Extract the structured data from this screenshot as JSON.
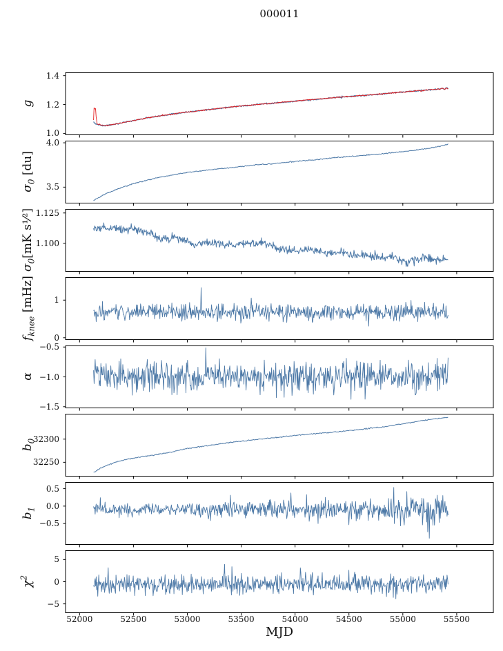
{
  "figure": {
    "title": "000011",
    "xlabel": "MJD",
    "background": "#ffffff",
    "axis_color": "#000000"
  },
  "colors": {
    "line_blue": "#4d79a7",
    "line_red": "#e31a1c"
  },
  "axis": {
    "xlim": [
      51870,
      55840
    ],
    "grid": false,
    "xticks": [
      {
        "v": 52000,
        "label": "52000"
      },
      {
        "v": 52500,
        "label": "52500"
      },
      {
        "v": 53000,
        "label": "53000"
      },
      {
        "v": 53500,
        "label": "53500"
      },
      {
        "v": 54000,
        "label": "54000"
      },
      {
        "v": 54500,
        "label": "54500"
      },
      {
        "v": 55000,
        "label": "55000"
      },
      {
        "v": 55500,
        "label": "55500"
      }
    ]
  },
  "chart_data": [
    {
      "id": "g",
      "type": "line",
      "ylabel": {
        "main": "g",
        "sub": "",
        "sup": "",
        "unit": ""
      },
      "ylim": [
        0.99,
        1.42
      ],
      "yticks": [
        {
          "v": 1.4,
          "label": "1.4"
        },
        {
          "v": 1.2,
          "label": "1.2"
        },
        {
          "v": 1.0,
          "label": "1.0"
        }
      ],
      "series": [
        {
          "name": "gain-blue",
          "color": "#4d79a7",
          "width": 1.3,
          "kind": "smooth",
          "n": 620,
          "noise": 0.0022,
          "seed": 7,
          "anchors": [
            [
              52130,
              1.075
            ],
            [
              52160,
              1.062
            ],
            [
              52230,
              1.052
            ],
            [
              52320,
              1.062
            ],
            [
              52450,
              1.082
            ],
            [
              52600,
              1.103
            ],
            [
              52750,
              1.122
            ],
            [
              52900,
              1.138
            ],
            [
              53050,
              1.152
            ],
            [
              53200,
              1.165
            ],
            [
              53350,
              1.178
            ],
            [
              53500,
              1.19
            ],
            [
              53650,
              1.2
            ],
            [
              53800,
              1.21
            ],
            [
              53950,
              1.22
            ],
            [
              54100,
              1.23
            ],
            [
              54250,
              1.24
            ],
            [
              54400,
              1.25
            ],
            [
              54550,
              1.258
            ],
            [
              54700,
              1.267
            ],
            [
              54850,
              1.277
            ],
            [
              55000,
              1.287
            ],
            [
              55150,
              1.296
            ],
            [
              55250,
              1.302
            ],
            [
              55330,
              1.306
            ],
            [
              55370,
              1.312
            ],
            [
              55390,
              1.305
            ],
            [
              55410,
              1.316
            ],
            [
              55420,
              1.31
            ]
          ]
        },
        {
          "name": "gain-red",
          "color": "#e31a1c",
          "width": 0.9,
          "kind": "smooth",
          "n": 700,
          "noise": 0.0022,
          "seed": 9,
          "anchors": [
            [
              52130,
              1.09
            ],
            [
              52136,
              1.205
            ],
            [
              52141,
              1.15
            ],
            [
              52147,
              1.195
            ],
            [
              52153,
              1.12
            ],
            [
              52162,
              1.068
            ],
            [
              52230,
              1.052
            ],
            [
              52320,
              1.062
            ],
            [
              52450,
              1.082
            ],
            [
              52600,
              1.103
            ],
            [
              52750,
              1.122
            ],
            [
              52900,
              1.138
            ],
            [
              53050,
              1.152
            ],
            [
              53200,
              1.165
            ],
            [
              53350,
              1.178
            ],
            [
              53500,
              1.19
            ],
            [
              53650,
              1.2
            ],
            [
              53800,
              1.21
            ],
            [
              53950,
              1.22
            ],
            [
              54100,
              1.23
            ],
            [
              54250,
              1.24
            ],
            [
              54400,
              1.25
            ],
            [
              54550,
              1.258
            ],
            [
              54700,
              1.267
            ],
            [
              54850,
              1.277
            ],
            [
              55000,
              1.287
            ],
            [
              55150,
              1.296
            ],
            [
              55250,
              1.302
            ],
            [
              55330,
              1.306
            ],
            [
              55370,
              1.312
            ],
            [
              55390,
              1.305
            ],
            [
              55410,
              1.316
            ],
            [
              55420,
              1.31
            ]
          ]
        }
      ]
    },
    {
      "id": "sigma0-du",
      "type": "line",
      "ylabel": {
        "main": "σ",
        "sub": "0",
        "sup": "",
        "unit": " [du]"
      },
      "ylim": [
        3.32,
        4.02
      ],
      "yticks": [
        {
          "v": 4.0,
          "label": "4.0"
        },
        {
          "v": 3.5,
          "label": "3.5"
        }
      ],
      "series": [
        {
          "name": "sigma0-du",
          "color": "#4d79a7",
          "width": 1.0,
          "kind": "smooth",
          "n": 520,
          "noise": 0.003,
          "seed": 21,
          "anchors": [
            [
              52130,
              3.35
            ],
            [
              52250,
              3.43
            ],
            [
              52400,
              3.5
            ],
            [
              52550,
              3.555
            ],
            [
              52700,
              3.6
            ],
            [
              52850,
              3.635
            ],
            [
              53000,
              3.665
            ],
            [
              53200,
              3.695
            ],
            [
              53400,
              3.72
            ],
            [
              53600,
              3.745
            ],
            [
              53800,
              3.765
            ],
            [
              54000,
              3.79
            ],
            [
              54200,
              3.81
            ],
            [
              54400,
              3.835
            ],
            [
              54600,
              3.855
            ],
            [
              54800,
              3.875
            ],
            [
              55000,
              3.9
            ],
            [
              55200,
              3.93
            ],
            [
              55350,
              3.96
            ],
            [
              55420,
              3.985
            ]
          ]
        }
      ]
    },
    {
      "id": "sigma0-mK",
      "type": "line",
      "ylabel": {
        "main": "σ",
        "sub": "0",
        "sup": "",
        "unit": "[mK s¹⁄²]"
      },
      "ylim": [
        1.077,
        1.128
      ],
      "yticks": [
        {
          "v": 1.125,
          "label": "1.125"
        },
        {
          "v": 1.1,
          "label": "1.100"
        }
      ],
      "series": [
        {
          "name": "sigma0-mK",
          "color": "#4d79a7",
          "width": 1.0,
          "kind": "smooth",
          "n": 660,
          "noise": 0.0018,
          "seed": 33,
          "anchors": [
            [
              52130,
              1.1125
            ],
            [
              52250,
              1.113
            ],
            [
              52400,
              1.1115
            ],
            [
              52550,
              1.112
            ],
            [
              52650,
              1.108
            ],
            [
              52750,
              1.1035
            ],
            [
              52900,
              1.1045
            ],
            [
              53000,
              1.1005
            ],
            [
              53100,
              1.0995
            ],
            [
              53250,
              1.101
            ],
            [
              53400,
              1.0985
            ],
            [
              53550,
              1.1
            ],
            [
              53700,
              1.0995
            ],
            [
              53850,
              1.096
            ],
            [
              54000,
              1.0935
            ],
            [
              54150,
              1.0955
            ],
            [
              54300,
              1.0915
            ],
            [
              54450,
              1.0925
            ],
            [
              54600,
              1.09
            ],
            [
              54750,
              1.0895
            ],
            [
              54900,
              1.088
            ],
            [
              55050,
              1.0845
            ],
            [
              55200,
              1.0885
            ],
            [
              55350,
              1.086
            ],
            [
              55420,
              1.0865
            ]
          ]
        }
      ]
    },
    {
      "id": "fknee",
      "type": "line",
      "ylabel": {
        "main": "f",
        "sub": "knee",
        "sup": "",
        "unit": " [mHz]"
      },
      "ylim": [
        -0.05,
        1.6
      ],
      "yticks": [
        {
          "v": 1,
          "label": "1"
        },
        {
          "v": 0,
          "label": "0"
        }
      ],
      "series": [
        {
          "name": "fknee",
          "color": "#4d79a7",
          "width": 0.9,
          "kind": "noise",
          "n": 680,
          "x0": 52130,
          "x1": 55420,
          "mean": 0.68,
          "amp": 0.115,
          "spike_p": 0.02,
          "spike_mult": 2.2,
          "seed": 44
        }
      ]
    },
    {
      "id": "alpha",
      "type": "line",
      "ylabel": {
        "main": "α",
        "sub": "",
        "sup": "",
        "unit": ""
      },
      "ylim": [
        -1.52,
        -0.48
      ],
      "yticks": [
        {
          "v": -0.5,
          "label": "−0.5"
        },
        {
          "v": -1.0,
          "label": "−1.0"
        },
        {
          "v": -1.5,
          "label": "−1.5"
        }
      ],
      "series": [
        {
          "name": "alpha",
          "color": "#4d79a7",
          "width": 0.9,
          "kind": "noise",
          "n": 680,
          "x0": 52130,
          "x1": 55420,
          "mean": -1.0,
          "amp": 0.125,
          "spike_p": 0.015,
          "spike_mult": 1.8,
          "seed": 55
        }
      ]
    },
    {
      "id": "b0",
      "type": "line",
      "ylabel": {
        "main": "b",
        "sub": "0",
        "sup": "",
        "unit": ""
      },
      "ylim": [
        32220,
        32354
      ],
      "yticks": [
        {
          "v": 32300,
          "label": "32300"
        },
        {
          "v": 32250,
          "label": "32250"
        }
      ],
      "series": [
        {
          "name": "b0",
          "color": "#4d79a7",
          "width": 1.0,
          "kind": "smooth",
          "n": 520,
          "noise": 0.5,
          "seed": 66,
          "anchors": [
            [
              52130,
              32228
            ],
            [
              52220,
              32240
            ],
            [
              52320,
              32249
            ],
            [
              52430,
              32256
            ],
            [
              52550,
              32261
            ],
            [
              52700,
              32266
            ],
            [
              52850,
              32272
            ],
            [
              53000,
              32280
            ],
            [
              53100,
              32283
            ],
            [
              53250,
              32288
            ],
            [
              53400,
              32293
            ],
            [
              53600,
              32298
            ],
            [
              53800,
              32303
            ],
            [
              54000,
              32308
            ],
            [
              54200,
              32312
            ],
            [
              54400,
              32316
            ],
            [
              54600,
              32321
            ],
            [
              54800,
              32326
            ],
            [
              55000,
              32333
            ],
            [
              55150,
              32339
            ],
            [
              55300,
              32344
            ],
            [
              55420,
              32347
            ]
          ]
        }
      ]
    },
    {
      "id": "b1",
      "type": "line",
      "ylabel": {
        "main": "b",
        "sub": "1",
        "sup": "",
        "unit": ""
      },
      "ylim": [
        -1.1,
        0.68
      ],
      "yticks": [
        {
          "v": 0.5,
          "label": "0.5"
        },
        {
          "v": 0.0,
          "label": "0.0"
        },
        {
          "v": -0.5,
          "label": "−0.5"
        }
      ],
      "series": [
        {
          "name": "b1",
          "color": "#4d79a7",
          "width": 0.9,
          "kind": "noise",
          "n": 680,
          "x0": 52130,
          "x1": 55420,
          "mean": -0.1,
          "amp": 0.13,
          "ramp": 0.9,
          "spike_p": 0.03,
          "spike_mult": 2.4,
          "seed": 77
        }
      ]
    },
    {
      "id": "chi2",
      "type": "line",
      "ylabel": {
        "main": "χ",
        "sub": "",
        "sup": "2",
        "unit": ""
      },
      "ylim": [
        -7,
        7
      ],
      "yticks": [
        {
          "v": 5,
          "label": "5"
        },
        {
          "v": 0,
          "label": "0"
        },
        {
          "v": -5,
          "label": "−5"
        }
      ],
      "series": [
        {
          "name": "chi2",
          "color": "#4d79a7",
          "width": 0.9,
          "kind": "noise",
          "n": 680,
          "x0": 52130,
          "x1": 55420,
          "mean": -0.6,
          "amp": 1.0,
          "spike_p": 0.03,
          "spike_mult": 2.2,
          "seed": 88
        }
      ]
    }
  ]
}
